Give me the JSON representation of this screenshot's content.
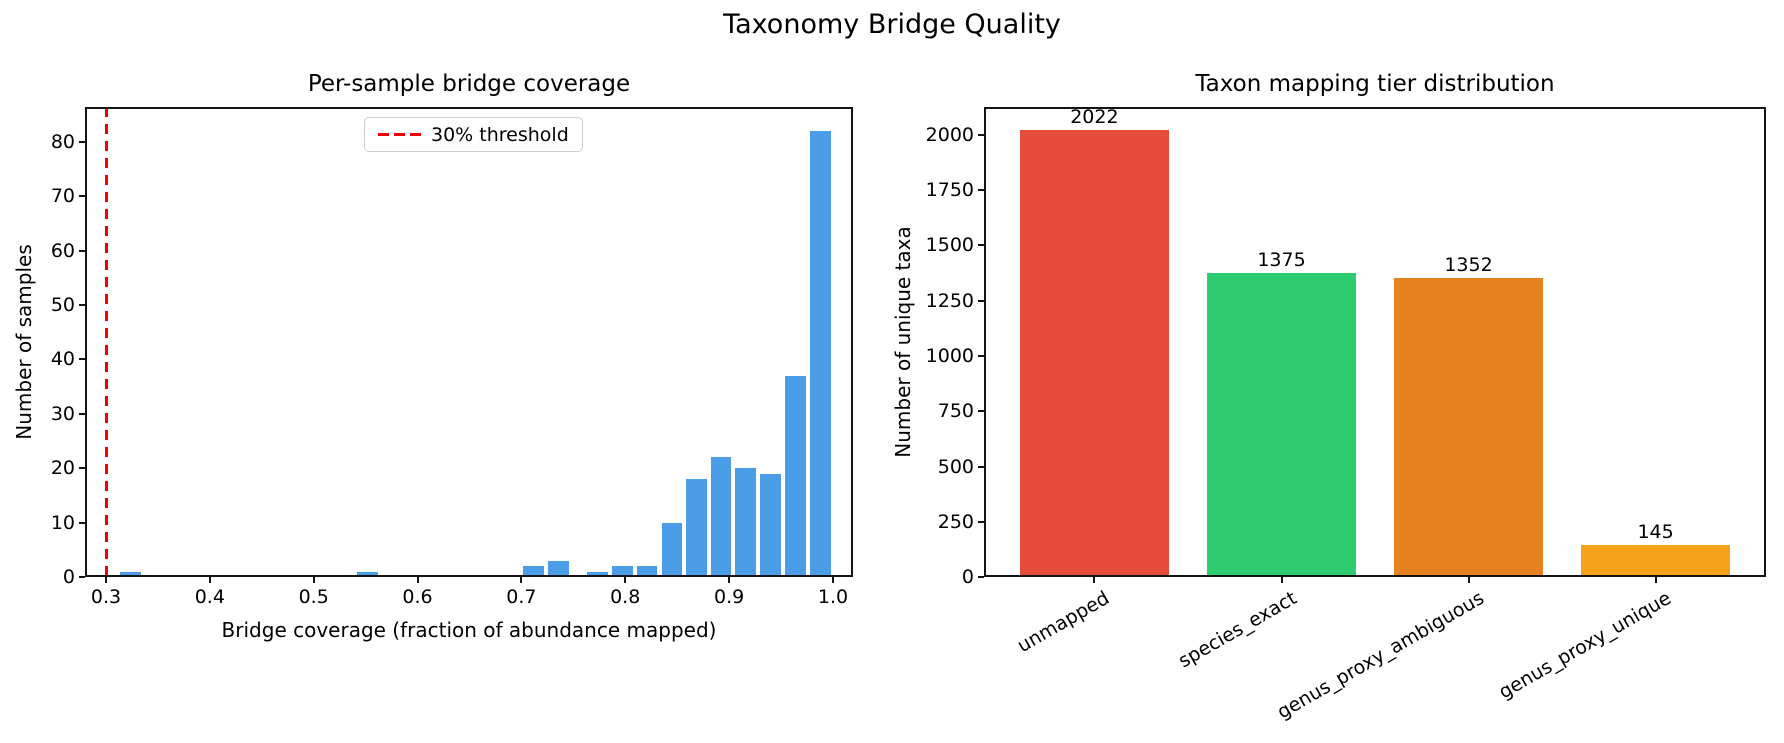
{
  "figure": {
    "suptitle": "Taxonomy Bridge Quality",
    "background_color": "#ffffff"
  },
  "chart_data": [
    {
      "id": "coverage_histogram",
      "type": "bar",
      "subtype": "histogram",
      "title": "Per-sample bridge coverage",
      "xlabel": "Bridge coverage (fraction of abundance mapped)",
      "ylabel": "Number of samples",
      "bar_color": "#4c9de8",
      "bar_edge_color": "#ffffff",
      "grid": false,
      "xlim": [
        0.2798,
        1.0193
      ],
      "ylim": [
        0,
        86.4
      ],
      "x_ticks": [
        0.3,
        0.4,
        0.5,
        0.6,
        0.7,
        0.8,
        0.9,
        1.0
      ],
      "x_tick_labels": [
        "0.3",
        "0.4",
        "0.5",
        "0.6",
        "0.7",
        "0.8",
        "0.9",
        "1.0"
      ],
      "y_ticks": [
        0,
        10,
        20,
        30,
        40,
        50,
        60,
        70,
        80
      ],
      "bins": [
        {
          "x0": 0.312,
          "x1": 0.336,
          "count": 1
        },
        {
          "x0": 0.54,
          "x1": 0.564,
          "count": 1
        },
        {
          "x0": 0.7,
          "x1": 0.724,
          "count": 2
        },
        {
          "x0": 0.724,
          "x1": 0.748,
          "count": 3
        },
        {
          "x0": 0.761,
          "x1": 0.785,
          "count": 1
        },
        {
          "x0": 0.785,
          "x1": 0.809,
          "count": 2
        },
        {
          "x0": 0.809,
          "x1": 0.833,
          "count": 2
        },
        {
          "x0": 0.833,
          "x1": 0.857,
          "count": 10
        },
        {
          "x0": 0.857,
          "x1": 0.881,
          "count": 18
        },
        {
          "x0": 0.881,
          "x1": 0.904,
          "count": 22
        },
        {
          "x0": 0.904,
          "x1": 0.928,
          "count": 20
        },
        {
          "x0": 0.928,
          "x1": 0.952,
          "count": 19
        },
        {
          "x0": 0.952,
          "x1": 0.976,
          "count": 37
        },
        {
          "x0": 0.976,
          "x1": 1.0,
          "count": 82
        }
      ],
      "threshold_line": {
        "x": 0.3,
        "color": "#f40000",
        "style": "dashed"
      },
      "legend": {
        "label": "30% threshold",
        "line_color": "#f40000",
        "line_style": "dashed",
        "position": "upper center"
      }
    },
    {
      "id": "tier_distribution",
      "type": "bar",
      "title": "Taxon mapping tier distribution",
      "xlabel": "",
      "ylabel": "Number of unique taxa",
      "grid": false,
      "categories": [
        "unmapped",
        "species_exact",
        "genus_proxy_ambiguous",
        "genus_proxy_unique"
      ],
      "values": [
        2022,
        1375,
        1352,
        145
      ],
      "value_labels": [
        "2022",
        "1375",
        "1352",
        "145"
      ],
      "bar_colors": [
        "#e64c3c",
        "#2ecc71",
        "#e6811f",
        "#f5a218"
      ],
      "ylim": [
        0,
        2126
      ],
      "y_ticks": [
        0,
        250,
        500,
        750,
        1000,
        1250,
        1500,
        1750,
        2000
      ],
      "x_tick_label_rotation_deg": 30
    }
  ]
}
